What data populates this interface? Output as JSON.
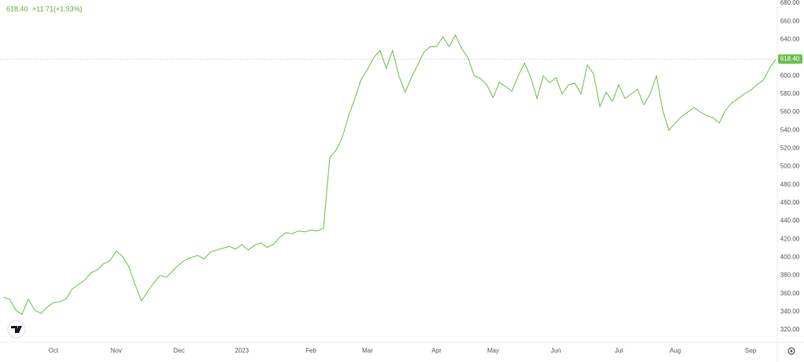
{
  "chart_data": {
    "type": "line",
    "header": {
      "price": "618.40",
      "change": "+11.71",
      "change_pct": "(+1.93%)"
    },
    "categories": [
      null,
      null,
      null,
      null,
      null,
      null,
      null,
      null,
      "Oct",
      null,
      null,
      null,
      null,
      null,
      null,
      null,
      null,
      null,
      "Nov",
      null,
      null,
      null,
      null,
      null,
      null,
      null,
      null,
      null,
      "Dec",
      null,
      null,
      null,
      null,
      null,
      null,
      null,
      null,
      null,
      "2023",
      null,
      null,
      null,
      null,
      null,
      null,
      null,
      null,
      null,
      null,
      "Feb",
      null,
      null,
      null,
      null,
      null,
      null,
      null,
      null,
      "Mar",
      null,
      null,
      null,
      null,
      null,
      null,
      null,
      null,
      null,
      null,
      "Apr",
      null,
      null,
      null,
      null,
      null,
      null,
      null,
      null,
      "May",
      null,
      null,
      null,
      null,
      null,
      null,
      null,
      null,
      null,
      "Jun",
      null,
      null,
      null,
      null,
      null,
      null,
      null,
      null,
      null,
      "Jul",
      null,
      null,
      null,
      null,
      null,
      null,
      null,
      null,
      "Aug",
      null,
      null,
      null,
      null,
      null,
      null,
      null,
      null,
      null,
      null,
      null,
      "Sep",
      null,
      null,
      null,
      null
    ],
    "values": [
      356,
      354,
      342,
      337,
      354,
      342,
      338,
      345,
      350,
      351,
      354,
      365,
      370,
      375,
      383,
      386,
      393,
      396,
      407,
      401,
      390,
      370,
      352,
      362,
      372,
      380,
      378,
      385,
      392,
      397,
      400,
      402,
      398,
      406,
      408,
      410,
      412,
      409,
      414,
      408,
      413,
      416,
      411,
      414,
      422,
      427,
      426,
      429,
      428,
      430,
      429,
      432,
      510,
      518,
      532,
      556,
      575,
      596,
      607,
      620,
      628,
      608,
      628,
      600,
      582,
      598,
      612,
      626,
      632,
      632,
      643,
      632,
      645,
      630,
      620,
      600,
      597,
      590,
      576,
      593,
      588,
      583,
      600,
      614,
      598,
      575,
      600,
      592,
      598,
      580,
      590,
      592,
      580,
      612,
      602,
      566,
      582,
      572,
      590,
      575,
      580,
      585,
      568,
      580,
      600,
      562,
      540,
      548,
      555,
      560,
      565,
      560,
      556,
      554,
      548,
      562,
      570,
      575,
      580,
      584,
      590,
      595,
      608,
      618.4
    ],
    "color": "#6cc04a",
    "last_price": {
      "value": 618.4,
      "label": "618.40"
    },
    "ylim": [
      306.2,
      683.5
    ],
    "yticks": [
      {
        "value": 320,
        "label": "320.00"
      },
      {
        "value": 340,
        "label": "340.00"
      },
      {
        "value": 360,
        "label": "360.00"
      },
      {
        "value": 380,
        "label": "380.00"
      },
      {
        "value": 400,
        "label": "400.00"
      },
      {
        "value": 420,
        "label": "420.00"
      },
      {
        "value": 440,
        "label": "440.00"
      },
      {
        "value": 460,
        "label": "460.00"
      },
      {
        "value": 480,
        "label": "480.00"
      },
      {
        "value": 500,
        "label": "500.00"
      },
      {
        "value": 520,
        "label": "520.00"
      },
      {
        "value": 540,
        "label": "540.00"
      },
      {
        "value": 560,
        "label": "560.00"
      },
      {
        "value": 580,
        "label": "580.00"
      },
      {
        "value": 600,
        "label": "600.00"
      },
      {
        "value": 620,
        "label": "620.00"
      },
      {
        "value": 640,
        "label": "640.00"
      },
      {
        "value": 660,
        "label": "660.00"
      },
      {
        "value": 680,
        "label": "680.00"
      }
    ],
    "grid": false
  }
}
